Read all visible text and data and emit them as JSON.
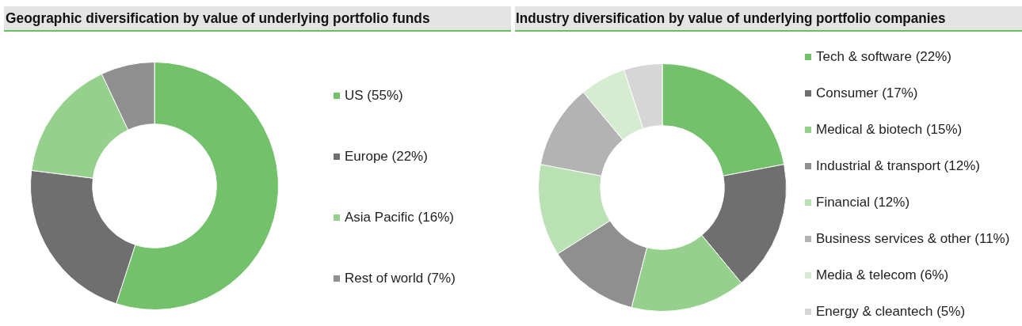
{
  "chart_data": [
    {
      "type": "donut",
      "title": "Geographic diversification by value of underlying portfolio funds",
      "categories": [
        "US (55%)",
        "Europe (22%)",
        "Asia Pacific (16%)",
        "Rest of world (7%)"
      ],
      "values": [
        55,
        22,
        16,
        7
      ],
      "colors": [
        "#73c16a",
        "#6f6f6f",
        "#95d18c",
        "#8f8f8f"
      ],
      "legend": "right"
    },
    {
      "type": "donut",
      "title": "Industry diversification by value of underlying portfolio companies",
      "categories": [
        "Tech & software (22%)",
        "Consumer (17%)",
        "Medical & biotech (15%)",
        "Industrial & transport (12%)",
        "Financial (12%)",
        "Business services & other (11%)",
        "Media & telecom (6%)",
        "Energy & cleantech (5%)"
      ],
      "values": [
        22,
        17,
        15,
        12,
        12,
        11,
        6,
        5
      ],
      "colors": [
        "#73c16a",
        "#6f6f6f",
        "#95d18c",
        "#8f8f8f",
        "#b9e1b3",
        "#b3b3b3",
        "#d5ecd1",
        "#d6d6d6"
      ],
      "legend": "right"
    }
  ]
}
